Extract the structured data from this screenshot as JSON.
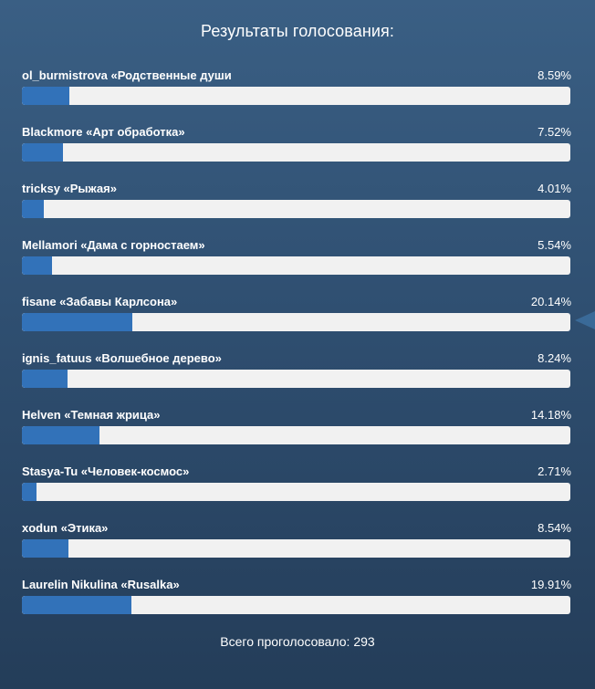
{
  "poll": {
    "title": "Результаты голосования:",
    "options": [
      {
        "label": "ol_burmistrova «Родственные души",
        "percent_text": "8.59%",
        "percent": 8.59
      },
      {
        "label": "Blackmore «Арт обработка»",
        "percent_text": "7.52%",
        "percent": 7.52
      },
      {
        "label": "tricksy «Рыжая»",
        "percent_text": "4.01%",
        "percent": 4.01
      },
      {
        "label": "Mellamori «Дама с горностаем»",
        "percent_text": "5.54%",
        "percent": 5.54
      },
      {
        "label": "fisane «Забавы Карлсона»",
        "percent_text": "20.14%",
        "percent": 20.14
      },
      {
        "label": "ignis_fatuus «Волшебное дерево»",
        "percent_text": "8.24%",
        "percent": 8.24
      },
      {
        "label": "Helven «Темная жрица»",
        "percent_text": "14.18%",
        "percent": 14.18
      },
      {
        "label": "Stasya-Tu «Человек-космос»",
        "percent_text": "2.71%",
        "percent": 2.71
      },
      {
        "label": "xodun «Этика»",
        "percent_text": "8.54%",
        "percent": 8.54
      },
      {
        "label": "Laurelin Nikulina «Rusalka»",
        "percent_text": "19.91%",
        "percent": 19.91
      }
    ],
    "total": "Всего проголосовало: 293"
  },
  "colors": {
    "background_top": "#3a5f84",
    "background_bottom": "#243d59",
    "bar_fill": "#3272b9",
    "bar_track": "#f1f1f1",
    "text": "#ffffff"
  },
  "icons": {
    "side_arrow": "triangle-left-icon"
  }
}
